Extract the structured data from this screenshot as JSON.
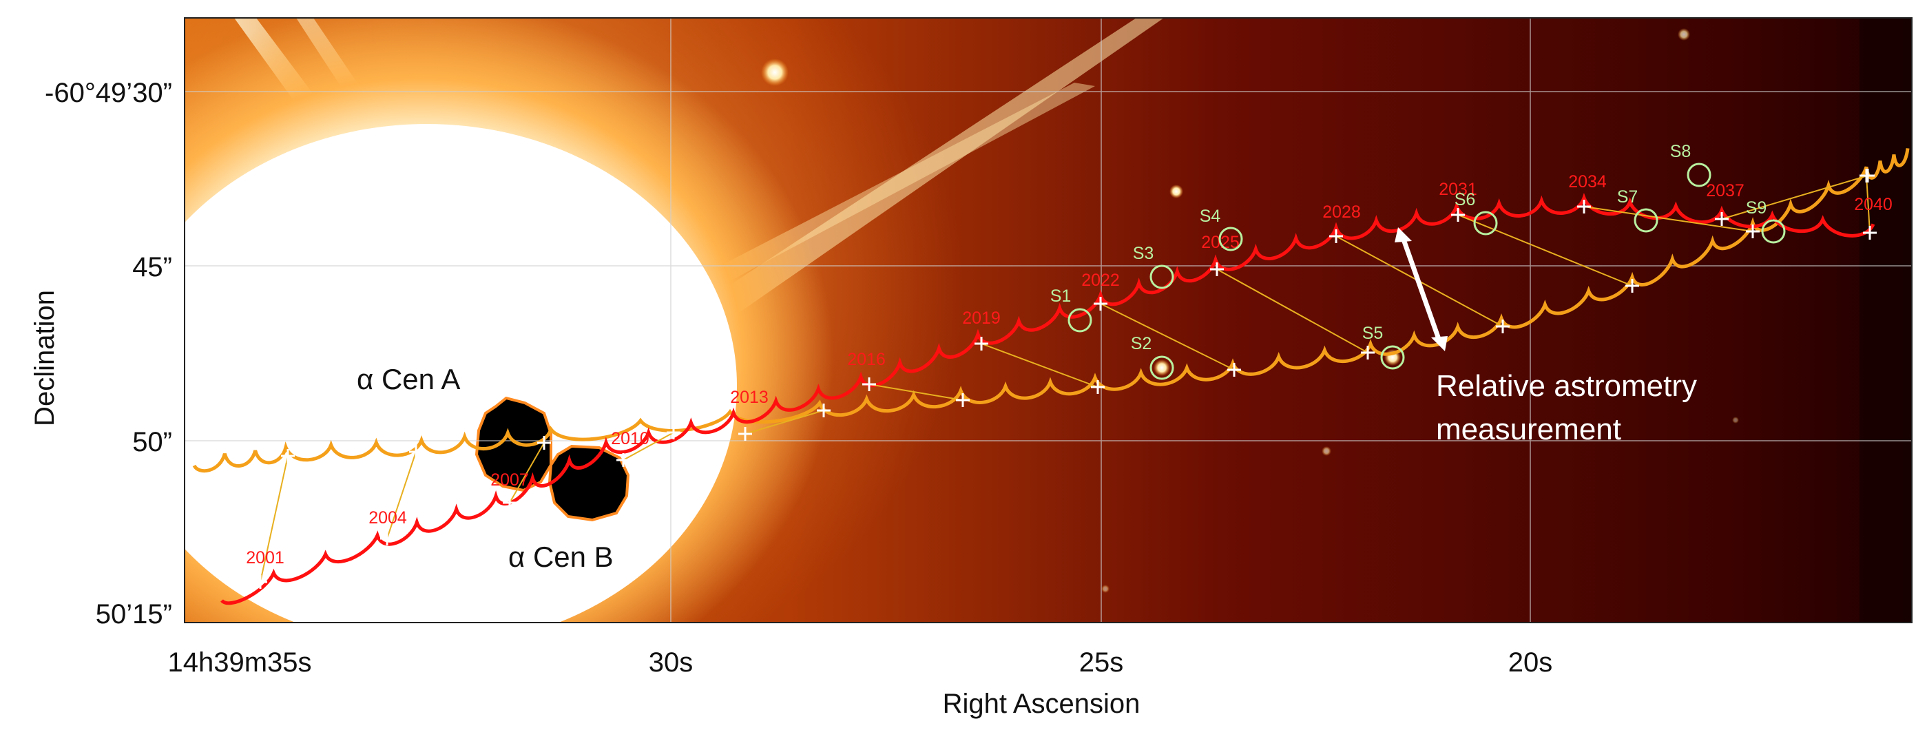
{
  "figure": {
    "x_axis_title": "Right Ascension",
    "y_axis_title": "Declination",
    "x_ticks": [
      "14h39m35s",
      "30s",
      "25s",
      "20s"
    ],
    "y_ticks": [
      "-60°49’30”",
      "45”",
      "50”",
      "50’15”"
    ],
    "star_a_label": "α Cen A",
    "star_b_label": "α Cen B",
    "annotation_line1": "Relative astrometry",
    "annotation_line2": "measurement",
    "red_track_years": [
      "2001",
      "2004",
      "2007",
      "2010",
      "2013",
      "2016",
      "2019",
      "2022",
      "2025",
      "2028",
      "2031",
      "2034",
      "2037",
      "2040"
    ],
    "background_stars": [
      "S1",
      "S2",
      "S3",
      "S4",
      "S5",
      "S6",
      "S7",
      "S8",
      "S9"
    ],
    "colors": {
      "red_track": "#ff1010",
      "orange_track": "#f5a01a",
      "star_marker": "#b8f0a0",
      "year_label": "#ff1a1a",
      "image_dark": "#1e0000",
      "image_bright": "#ffffff"
    }
  }
}
